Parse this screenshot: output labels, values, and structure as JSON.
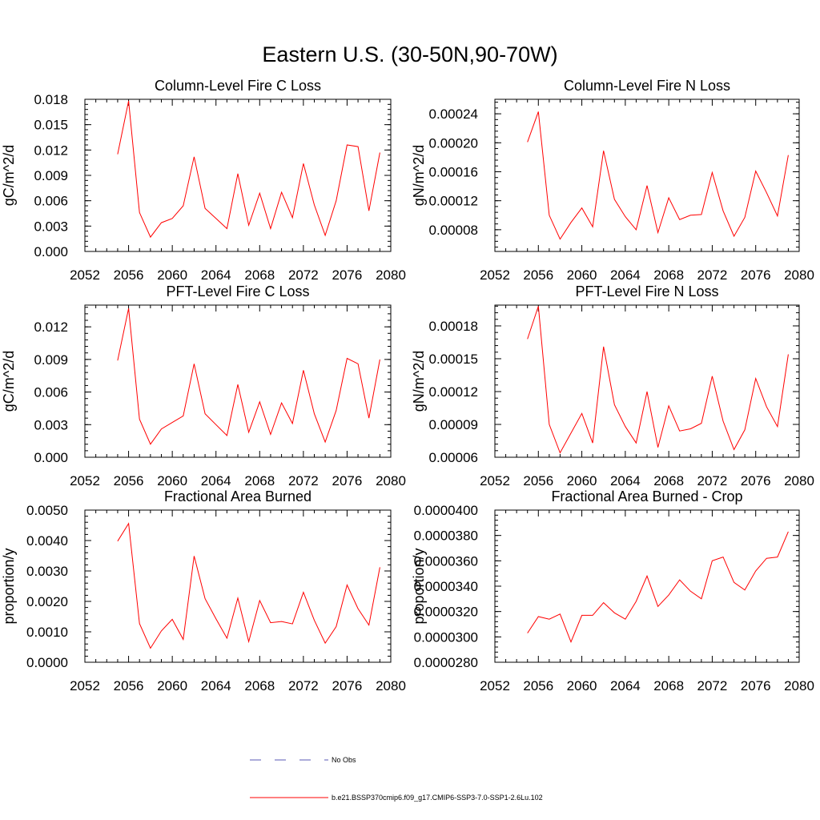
{
  "title": "Eastern U.S. (30-50N,90-70W)",
  "colors": {
    "model_line": "#ff0000",
    "obs_line": "#5a5ab4",
    "axes": "#000000",
    "background": "#ffffff"
  },
  "legend": {
    "placement": "bottom-center",
    "items": [
      {
        "label": "No Obs",
        "color": "#5a5ab4",
        "style": "dashed"
      },
      {
        "label": "b.e21.BSSP370cmip6.f09_g17.CMIP6-SSP3-7.0-SSP1-2.6Lu.102",
        "color": "#ff0000",
        "style": "solid"
      }
    ]
  },
  "chart_data": [
    {
      "type": "line",
      "title": "Column-Level Fire C Loss",
      "ylabel": "gC/m^2/d",
      "xlim": [
        2052,
        2080
      ],
      "ylim": [
        0,
        0.018
      ],
      "x_ticks": [
        "2052",
        "2056",
        "2060",
        "2064",
        "2068",
        "2072",
        "2076",
        "2080"
      ],
      "y_ticks": [
        "0.000",
        "0.003",
        "0.006",
        "0.009",
        "0.012",
        "0.015",
        "0.018"
      ],
      "x": [
        2055,
        2056,
        2057,
        2058,
        2059,
        2060,
        2061,
        2062,
        2063,
        2064,
        2065,
        2066,
        2067,
        2068,
        2069,
        2070,
        2071,
        2072,
        2073,
        2074,
        2075,
        2076,
        2077,
        2078,
        2079
      ],
      "series": [
        {
          "name": "b.e21.BSSP370cmip6.f09_g17.CMIP6-SSP3-7.0-SSP1-2.6Lu.102",
          "values": [
            0.0115,
            0.0178,
            0.0046,
            0.0017,
            0.0034,
            0.0039,
            0.0054,
            0.0112,
            0.0051,
            0.0039,
            0.0027,
            0.0092,
            0.0031,
            0.0069,
            0.0027,
            0.007,
            0.004,
            0.0104,
            0.0055,
            0.0019,
            0.006,
            0.0126,
            0.0124,
            0.0048,
            0.0117
          ]
        }
      ]
    },
    {
      "type": "line",
      "title": "Column-Level Fire N Loss",
      "ylabel": "gN/m^2/d",
      "xlim": [
        2052,
        2080
      ],
      "ylim": [
        5e-05,
        0.00026
      ],
      "x_ticks": [
        "2052",
        "2056",
        "2060",
        "2064",
        "2068",
        "2072",
        "2076",
        "2080"
      ],
      "y_ticks": [
        "0.00008",
        "0.00012",
        "0.00016",
        "0.00020",
        "0.00024"
      ],
      "y_tick_values": [
        8e-05,
        0.00012,
        0.00016,
        0.0002,
        0.00024
      ],
      "x": [
        2055,
        2056,
        2057,
        2058,
        2059,
        2060,
        2061,
        2062,
        2063,
        2064,
        2065,
        2066,
        2067,
        2068,
        2069,
        2070,
        2071,
        2072,
        2073,
        2074,
        2075,
        2076,
        2077,
        2078,
        2079
      ],
      "series": [
        {
          "name": "b.e21.BSSP370cmip6.f09_g17.CMIP6-SSP3-7.0-SSP1-2.6Lu.102",
          "values": [
            0.000201,
            0.000243,
            0.0001,
            6.7e-05,
            9e-05,
            0.00011,
            8.4e-05,
            0.000189,
            0.000122,
            9.8e-05,
            8e-05,
            0.000141,
            7.6e-05,
            0.000124,
            9.4e-05,
            0.0001,
            0.000101,
            0.000159,
            0.000106,
            7.1e-05,
            9.7e-05,
            0.000161,
            0.000131,
            9.9e-05,
            0.000183
          ]
        }
      ]
    },
    {
      "type": "line",
      "title": "PFT-Level Fire C Loss",
      "ylabel": "gC/m^2/d",
      "xlim": [
        2052,
        2080
      ],
      "ylim": [
        0,
        0.014
      ],
      "x_ticks": [
        "2052",
        "2056",
        "2060",
        "2064",
        "2068",
        "2072",
        "2076",
        "2080"
      ],
      "y_ticks": [
        "0.000",
        "0.003",
        "0.006",
        "0.009",
        "0.012"
      ],
      "y_tick_values": [
        0,
        0.003,
        0.006,
        0.009,
        0.012
      ],
      "x": [
        2055,
        2056,
        2057,
        2058,
        2059,
        2060,
        2061,
        2062,
        2063,
        2064,
        2065,
        2066,
        2067,
        2068,
        2069,
        2070,
        2071,
        2072,
        2073,
        2074,
        2075,
        2076,
        2077,
        2078,
        2079
      ],
      "series": [
        {
          "name": "b.e21.BSSP370cmip6.f09_g17.CMIP6-SSP3-7.0-SSP1-2.6Lu.102",
          "values": [
            0.0089,
            0.0137,
            0.0035,
            0.0012,
            0.0026,
            0.0032,
            0.0038,
            0.0086,
            0.004,
            0.003,
            0.002,
            0.0067,
            0.0023,
            0.0051,
            0.0021,
            0.005,
            0.0031,
            0.008,
            0.004,
            0.0014,
            0.0043,
            0.0091,
            0.0086,
            0.0036,
            0.009
          ]
        }
      ]
    },
    {
      "type": "line",
      "title": "PFT-Level Fire N Loss",
      "ylabel": "gN/m^2/d",
      "xlim": [
        2052,
        2080
      ],
      "ylim": [
        6e-05,
        0.000199
      ],
      "x_ticks": [
        "2052",
        "2056",
        "2060",
        "2064",
        "2068",
        "2072",
        "2076",
        "2080"
      ],
      "y_ticks": [
        "0.00006",
        "0.00009",
        "0.00012",
        "0.00015",
        "0.00018"
      ],
      "y_tick_values": [
        6e-05,
        9e-05,
        0.00012,
        0.00015,
        0.00018
      ],
      "x": [
        2055,
        2056,
        2057,
        2058,
        2059,
        2060,
        2061,
        2062,
        2063,
        2064,
        2065,
        2066,
        2067,
        2068,
        2069,
        2070,
        2071,
        2072,
        2073,
        2074,
        2075,
        2076,
        2077,
        2078,
        2079
      ],
      "series": [
        {
          "name": "b.e21.BSSP370cmip6.f09_g17.CMIP6-SSP3-7.0-SSP1-2.6Lu.102",
          "values": [
            0.000168,
            0.000198,
            9e-05,
            6.4e-05,
            8.2e-05,
            0.0001,
            7.3e-05,
            0.000161,
            0.000108,
            8.8e-05,
            7.3e-05,
            0.00012,
            6.9e-05,
            0.000107,
            8.4e-05,
            8.6e-05,
            9.1e-05,
            0.000134,
            9.3e-05,
            6.7e-05,
            8.5e-05,
            0.000132,
            0.000106,
            8.8e-05,
            0.000154
          ]
        }
      ]
    },
    {
      "type": "line",
      "title": "Fractional Area Burned",
      "ylabel": "proportion/y",
      "xlim": [
        2052,
        2080
      ],
      "ylim": [
        0,
        0.005
      ],
      "x_ticks": [
        "2052",
        "2056",
        "2060",
        "2064",
        "2068",
        "2072",
        "2076",
        "2080"
      ],
      "y_ticks": [
        "0.0000",
        "0.0010",
        "0.0020",
        "0.0030",
        "0.0040",
        "0.0050"
      ],
      "y_tick_values": [
        0,
        0.001,
        0.002,
        0.003,
        0.004,
        0.005
      ],
      "x": [
        2055,
        2056,
        2057,
        2058,
        2059,
        2060,
        2061,
        2062,
        2063,
        2064,
        2065,
        2066,
        2067,
        2068,
        2069,
        2070,
        2071,
        2072,
        2073,
        2074,
        2075,
        2076,
        2077,
        2078,
        2079
      ],
      "series": [
        {
          "name": "b.e21.BSSP370cmip6.f09_g17.CMIP6-SSP3-7.0-SSP1-2.6Lu.102",
          "values": [
            0.00398,
            0.00456,
            0.00127,
            0.00046,
            0.00103,
            0.00141,
            0.00075,
            0.00349,
            0.00209,
            0.00143,
            0.00079,
            0.00211,
            0.00068,
            0.00203,
            0.0013,
            0.00134,
            0.00126,
            0.0023,
            0.00138,
            0.00063,
            0.00117,
            0.00254,
            0.00176,
            0.00122,
            0.00312
          ]
        }
      ]
    },
    {
      "type": "line",
      "title": "Fractional Area Burned - Crop",
      "ylabel": "proportion/y",
      "xlim": [
        2052,
        2080
      ],
      "ylim": [
        2.8e-05,
        4e-05
      ],
      "x_ticks": [
        "2052",
        "2056",
        "2060",
        "2064",
        "2068",
        "2072",
        "2076",
        "2080"
      ],
      "y_ticks": [
        "0.0000280",
        "0.0000300",
        "0.0000320",
        "0.0000340",
        "0.0000360",
        "0.0000380",
        "0.0000400"
      ],
      "y_tick_values": [
        2.8e-05,
        3e-05,
        3.2e-05,
        3.4e-05,
        3.6e-05,
        3.8e-05,
        4e-05
      ],
      "x": [
        2055,
        2056,
        2057,
        2058,
        2059,
        2060,
        2061,
        2062,
        2063,
        2064,
        2065,
        2066,
        2067,
        2068,
        2069,
        2070,
        2071,
        2072,
        2073,
        2074,
        2075,
        2076,
        2077,
        2078,
        2079
      ],
      "series": [
        {
          "name": "b.e21.BSSP370cmip6.f09_g17.CMIP6-SSP3-7.0-SSP1-2.6Lu.102",
          "values": [
            3.03e-05,
            3.16e-05,
            3.14e-05,
            3.18e-05,
            2.96e-05,
            3.17e-05,
            3.17e-05,
            3.27e-05,
            3.19e-05,
            3.14e-05,
            3.28e-05,
            3.48e-05,
            3.24e-05,
            3.33e-05,
            3.45e-05,
            3.36e-05,
            3.3e-05,
            3.6e-05,
            3.63e-05,
            3.43e-05,
            3.37e-05,
            3.52e-05,
            3.62e-05,
            3.63e-05,
            3.83e-05
          ]
        }
      ]
    }
  ]
}
